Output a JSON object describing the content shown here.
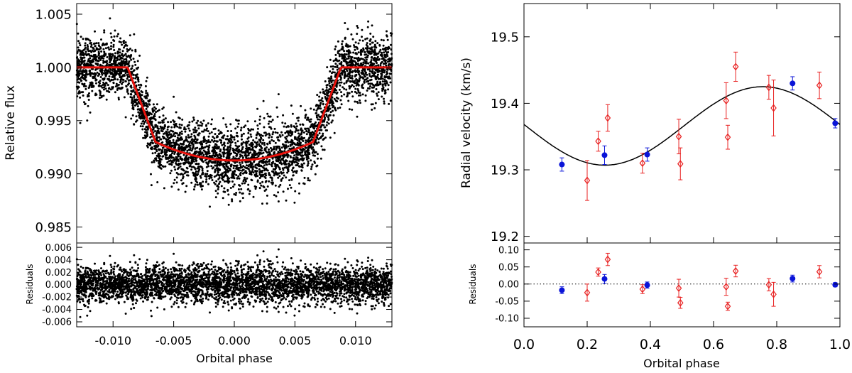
{
  "chart_data": [
    {
      "panel": "transit-main",
      "type": "scatter",
      "ylabel": "Relative flux",
      "xlim": [
        -0.013,
        0.013
      ],
      "ylim": [
        0.9835,
        1.006
      ],
      "yticks": [
        0.985,
        0.99,
        0.995,
        1.0,
        1.005
      ],
      "ytick_labels": [
        "0.985",
        "0.990",
        "0.995",
        "1.000",
        "1.005"
      ],
      "model": {
        "name": "transit model",
        "color": "#e8120c",
        "baseline": 1.0,
        "depth_flux": 0.99125,
        "ingress_start": 0.0088,
        "ingress_end": 0.0065,
        "flat_bottom_edge": 0.993
      },
      "points": {
        "color": "#000000",
        "scatter_sigma": 0.0015,
        "outlier_sigma_min": 0.9872
      }
    },
    {
      "panel": "transit-residuals",
      "type": "scatter",
      "ylabel": "Residuals",
      "xlabel": "Orbital phase",
      "xlim": [
        -0.013,
        0.013
      ],
      "ylim": [
        -0.0068,
        0.0067
      ],
      "xticks": [
        -0.01,
        -0.005,
        0.0,
        0.005,
        0.01
      ],
      "xtick_labels": [
        "-0.010",
        "-0.005",
        "0.000",
        "0.005",
        "0.010"
      ],
      "yticks": [
        -0.006,
        -0.004,
        -0.002,
        0.0,
        0.002,
        0.004,
        0.006
      ],
      "ytick_labels": [
        "-0.006",
        "-0.004",
        "-0.002",
        "0.000",
        "0.002",
        "0.004",
        "0.006"
      ]
    },
    {
      "panel": "rv-main",
      "type": "scatter",
      "ylabel": "Radial velocity  (km/s)",
      "xlim": [
        0.0,
        1.0
      ],
      "ylim": [
        19.19,
        19.55
      ],
      "yticks": [
        19.2,
        19.3,
        19.4,
        19.5
      ],
      "ytick_labels": [
        "19.2",
        "19.3",
        "19.4",
        "19.5"
      ],
      "model": {
        "name": "RV fit",
        "color": "#000000",
        "gamma": 19.366,
        "K": 0.059,
        "phase_of_max": 0.756
      },
      "series": [
        {
          "name": "blue-circles",
          "color": "#0a14d8",
          "marker": "circle",
          "x": [
            0.12,
            0.255,
            0.39,
            0.85,
            0.985
          ],
          "y": [
            19.308,
            19.322,
            19.323,
            19.43,
            19.37
          ],
          "err": [
            0.01,
            0.014,
            0.01,
            0.01,
            0.007
          ]
        },
        {
          "name": "red-diamonds",
          "color": "#e82020",
          "marker": "diamond",
          "x": [
            0.2,
            0.235,
            0.265,
            0.375,
            0.49,
            0.495,
            0.64,
            0.645,
            0.67,
            0.775,
            0.79,
            0.935
          ],
          "y": [
            19.284,
            19.343,
            19.378,
            19.31,
            19.35,
            19.309,
            19.404,
            19.349,
            19.455,
            19.424,
            19.393,
            19.427
          ],
          "err": [
            0.03,
            0.015,
            0.02,
            0.015,
            0.026,
            0.024,
            0.027,
            0.018,
            0.022,
            0.018,
            0.042,
            0.02
          ]
        }
      ]
    },
    {
      "panel": "rv-residuals",
      "type": "scatter",
      "ylabel": "Residuals",
      "xlabel": "Orbital phase",
      "xlim": [
        0.0,
        1.0
      ],
      "ylim": [
        -0.125,
        0.12
      ],
      "xticks": [
        0.0,
        0.2,
        0.4,
        0.6,
        0.8,
        1.0
      ],
      "xtick_labels": [
        "0.0",
        "0.2",
        "0.4",
        "0.6",
        "0.8",
        "1.0"
      ],
      "yticks": [
        -0.1,
        -0.05,
        0.0,
        0.05,
        0.1
      ],
      "ytick_labels": [
        "-0.10",
        "-0.05",
        "0.00",
        "0.05",
        "0.10"
      ],
      "zero_line": {
        "style": "dotted",
        "value": 0.0
      },
      "series": [
        {
          "name": "blue-circles",
          "color": "#0a14d8",
          "marker": "circle",
          "x": [
            0.12,
            0.255,
            0.39,
            0.85,
            0.985
          ],
          "y": [
            -0.018,
            0.015,
            -0.003,
            0.016,
            -0.002
          ],
          "err": [
            0.01,
            0.013,
            0.009,
            0.01,
            0.006
          ]
        },
        {
          "name": "red-diamonds",
          "color": "#e82020",
          "marker": "diamond",
          "x": [
            0.2,
            0.235,
            0.265,
            0.375,
            0.49,
            0.495,
            0.64,
            0.645,
            0.67,
            0.775,
            0.79,
            0.935
          ],
          "y": [
            -0.025,
            0.035,
            0.072,
            -0.015,
            -0.012,
            -0.055,
            -0.008,
            -0.065,
            0.038,
            -0.002,
            -0.03,
            0.036
          ],
          "err": [
            0.025,
            0.012,
            0.018,
            0.013,
            0.026,
            0.016,
            0.025,
            0.012,
            0.017,
            0.018,
            0.035,
            0.018
          ]
        }
      ]
    }
  ]
}
